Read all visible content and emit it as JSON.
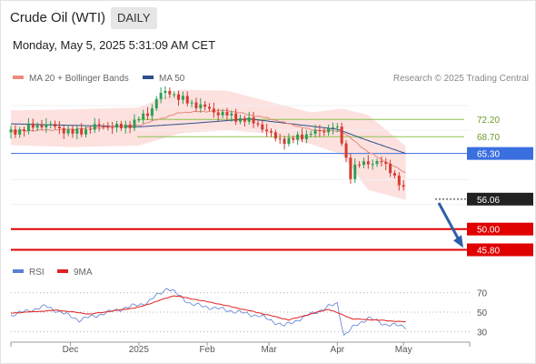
{
  "header": {
    "title": "Crude Oil (WTI)",
    "timeframe": "DAILY",
    "datetime": "Monday, May 5, 2025 5:31:09 AM CET"
  },
  "legend": {
    "ma20": {
      "label": "MA 20 + Bollinger Bands",
      "color": "#f08a80"
    },
    "ma50": {
      "label": "MA 50",
      "color": "#2d4f8a"
    },
    "credit": "Research © 2025 Trading Central"
  },
  "rsi_legend": {
    "rsi": {
      "label": "RSI",
      "color": "#5b7fd4"
    },
    "ma9": {
      "label": "9MA",
      "color": "#e02020"
    }
  },
  "chart_data": [
    {
      "type": "line",
      "y_range": [
        43.5,
        78.5
      ],
      "x_axis_labels": [
        "Dec",
        "2025",
        "Feb",
        "Mar",
        "Apr",
        "May"
      ],
      "x_range": [
        "2024-11-04",
        "2025-05-31"
      ],
      "x_ticks": [
        "2024-12-01",
        "2025-01-01",
        "2025-02-01",
        "2025-03-01",
        "2025-04-01",
        "2025-05-01"
      ],
      "series": [
        {
          "name": "price",
          "dates": [
            "2024-11-04",
            "2024-11-11",
            "2024-11-18",
            "2024-11-25",
            "2024-12-02",
            "2024-12-09",
            "2024-12-16",
            "2024-12-23",
            "2024-12-30",
            "2025-01-06",
            "2025-01-10",
            "2025-01-15",
            "2025-01-20",
            "2025-01-27",
            "2025-02-03",
            "2025-02-10",
            "2025-02-17",
            "2025-02-24",
            "2025-03-03",
            "2025-03-10",
            "2025-03-17",
            "2025-03-24",
            "2025-03-31",
            "2025-04-03",
            "2025-04-07",
            "2025-04-09",
            "2025-04-14",
            "2025-04-21",
            "2025-04-25",
            "2025-04-30",
            "2025-05-02"
          ],
          "values": [
            69.6,
            70.4,
            71.2,
            70.6,
            69.4,
            70.3,
            71.0,
            70.5,
            71.6,
            73.8,
            77.1,
            77.9,
            76.2,
            75.2,
            74.0,
            73.0,
            72.2,
            71.3,
            68.6,
            67.8,
            69.1,
            69.7,
            71.0,
            67.7,
            60.9,
            62.5,
            63.6,
            63.4,
            62.1,
            58.5,
            56.9
          ]
        },
        {
          "name": "MA 20",
          "dates": [
            "2024-11-04",
            "2024-12-01",
            "2025-01-01",
            "2025-01-20",
            "2025-02-10",
            "2025-03-01",
            "2025-03-20",
            "2025-04-03",
            "2025-04-15",
            "2025-05-02"
          ],
          "values": [
            69.8,
            70.2,
            71.0,
            73.6,
            74.0,
            72.4,
            70.1,
            69.8,
            65.6,
            61.4
          ]
        },
        {
          "name": "MA 50",
          "dates": [
            "2024-11-04",
            "2024-12-01",
            "2025-01-01",
            "2025-01-25",
            "2025-02-20",
            "2025-03-15",
            "2025-04-01",
            "2025-04-15",
            "2025-05-02"
          ],
          "values": [
            71.3,
            71.0,
            70.7,
            71.4,
            72.3,
            71.1,
            70.2,
            67.9,
            65.3
          ]
        }
      ],
      "bands": {
        "upper": [
          74.0,
          74.2,
          74.6,
          78.2,
          78.0,
          75.8,
          73.6,
          74.4,
          73.1,
          66.8
        ],
        "lower": [
          67.0,
          66.6,
          66.9,
          69.4,
          70.0,
          69.3,
          67.2,
          65.1,
          57.9,
          55.9
        ]
      },
      "levels": [
        {
          "value": "72.20",
          "kind": "resistance",
          "color": "#8bc34a"
        },
        {
          "value": "68.70",
          "kind": "resistance",
          "color": "#8bc34a"
        },
        {
          "value": "65.30",
          "kind": "pivot",
          "color": "#3a6fe0"
        },
        {
          "value": "56.06",
          "kind": "last",
          "color": "#222222"
        },
        {
          "value": "50.00",
          "kind": "target",
          "color": "#e00000"
        },
        {
          "value": "45.80",
          "kind": "target",
          "color": "#e00000"
        }
      ]
    },
    {
      "type": "line",
      "y_range": [
        22,
        78
      ],
      "y_ticks": [
        "70",
        "50",
        "30"
      ],
      "series": [
        {
          "name": "RSI",
          "dates": [
            "2024-11-04",
            "2024-11-20",
            "2024-12-05",
            "2024-12-20",
            "2025-01-05",
            "2025-01-14",
            "2025-01-25",
            "2025-02-10",
            "2025-02-25",
            "2025-03-08",
            "2025-03-20",
            "2025-04-01",
            "2025-04-04",
            "2025-04-09",
            "2025-04-15",
            "2025-04-22",
            "2025-05-02"
          ],
          "values": [
            47,
            56,
            42,
            51,
            60,
            75,
            58,
            52,
            46,
            36,
            48,
            59,
            26,
            36,
            44,
            38,
            35
          ]
        },
        {
          "name": "9MA",
          "dates": [
            "2024-11-04",
            "2024-11-25",
            "2024-12-10",
            "2025-01-01",
            "2025-01-17",
            "2025-02-05",
            "2025-02-25",
            "2025-03-10",
            "2025-03-28",
            "2025-04-08",
            "2025-04-18",
            "2025-05-02"
          ],
          "values": [
            49,
            52,
            48,
            55,
            67,
            59,
            49,
            42,
            53,
            43,
            42,
            40
          ]
        }
      ]
    }
  ]
}
